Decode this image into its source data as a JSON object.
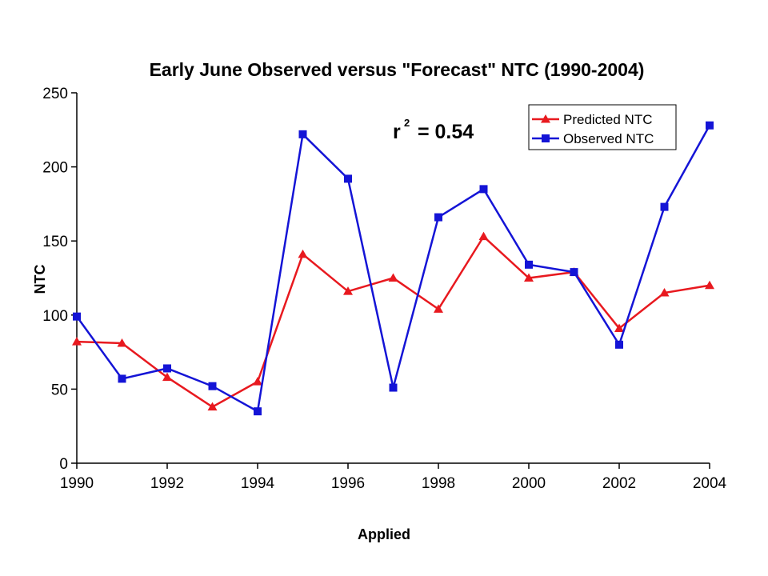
{
  "chart_data": {
    "type": "line",
    "title": "Early June Observed versus \"Forecast\" NTC (1990-2004)",
    "xlabel": "Applied",
    "ylabel": "NTC",
    "annotation": {
      "text": "r",
      "superscript": "2",
      "suffix": " = 0.54"
    },
    "x": [
      1990,
      1991,
      1992,
      1993,
      1994,
      1995,
      1996,
      1997,
      1998,
      1999,
      2000,
      2001,
      2002,
      2003,
      2004
    ],
    "x_ticks": [
      "1990",
      "1992",
      "1994",
      "1996",
      "1998",
      "2000",
      "2002",
      "2004"
    ],
    "y_ticks": [
      "0",
      "50",
      "100",
      "150",
      "200",
      "250"
    ],
    "xlim": [
      1990,
      2004
    ],
    "ylim": [
      0,
      250
    ],
    "grid": false,
    "legend_position": "top-right",
    "series": [
      {
        "name": "Predicted NTC",
        "color": "#e8191f",
        "marker": "triangle",
        "values": [
          82,
          81,
          58,
          38,
          55,
          141,
          116,
          125,
          104,
          153,
          125,
          129,
          91,
          115,
          120
        ]
      },
      {
        "name": "Observed NTC",
        "color": "#1414d6",
        "marker": "square",
        "values": [
          99,
          57,
          64,
          52,
          35,
          222,
          192,
          51,
          166,
          185,
          134,
          129,
          80,
          173,
          228
        ]
      }
    ]
  }
}
